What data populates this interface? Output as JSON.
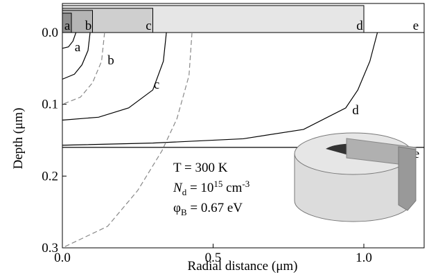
{
  "chart_data": {
    "type": "line",
    "xlabel": "Radial distance (μm)",
    "ylabel": "Depth (μm)",
    "xlim": [
      0,
      1.2
    ],
    "ylim": [
      0,
      0.3
    ],
    "y_inverted": true,
    "xticks": [
      {
        "value": 0,
        "label": "0.0"
      },
      {
        "value": 0.5,
        "label": "0.5"
      },
      {
        "value": 1,
        "label": "1.0"
      }
    ],
    "yticks": [
      {
        "value": 0,
        "label": "0.0"
      },
      {
        "value": 0.1,
        "label": "0.1"
      },
      {
        "value": 0.2,
        "label": "0.2"
      },
      {
        "value": 0.3,
        "label": "0.3"
      }
    ],
    "electrodes": [
      {
        "label": "a",
        "radius": 0.03
      },
      {
        "label": "b",
        "radius": 0.1
      },
      {
        "label": "c",
        "radius": 0.3
      },
      {
        "label": "d",
        "radius": 1.0
      },
      {
        "label": "e"
      }
    ],
    "series": [
      {
        "name": "a",
        "color": "#000000",
        "dash": false,
        "x": [
          0.045,
          0.035,
          0.02,
          0.0
        ],
        "values": [
          0,
          0.012,
          0.02,
          0.022
        ]
      },
      {
        "name": "b",
        "color": "#000000",
        "dash": false,
        "x": [
          0.092,
          0.085,
          0.065,
          0.04,
          0.0
        ],
        "values": [
          0,
          0.025,
          0.045,
          0.058,
          0.065
        ]
      },
      {
        "color": "#888888",
        "dash": true,
        "x": [
          0.14,
          0.13,
          0.1,
          0.06,
          0.0
        ],
        "values": [
          0,
          0.04,
          0.07,
          0.09,
          0.1
        ]
      },
      {
        "name": "c",
        "color": "#000000",
        "dash": false,
        "x": [
          0.345,
          0.335,
          0.3,
          0.22,
          0.12,
          0.0
        ],
        "values": [
          0,
          0.04,
          0.08,
          0.105,
          0.118,
          0.122
        ]
      },
      {
        "name": "d",
        "color": "#000000",
        "dash": false,
        "x": [
          1.045,
          1.02,
          0.98,
          0.94,
          0.8,
          0.6,
          0.3,
          0.0
        ],
        "values": [
          0,
          0.04,
          0.08,
          0.105,
          0.135,
          0.148,
          0.154,
          0.157
        ]
      },
      {
        "name": "e",
        "color": "#000000",
        "dash": false,
        "x": [
          0,
          1.2
        ],
        "values": [
          0.16,
          0.16
        ]
      },
      {
        "color": "#888888",
        "dash": true,
        "x": [
          0.43,
          0.42,
          0.38,
          0.33,
          0.25,
          0.15,
          0.0
        ],
        "values": [
          0,
          0.06,
          0.12,
          0.165,
          0.22,
          0.27,
          0.3
        ]
      }
    ],
    "annotations": [
      [
        {
          "text": "T = 300 K"
        }
      ],
      [
        {
          "text": "N",
          "style": "italic"
        },
        {
          "text": "d",
          "style": "sub"
        },
        {
          "text": " = 10"
        },
        {
          "text": "15",
          "style": "sup"
        },
        {
          "text": " cm"
        },
        {
          "text": "-3",
          "style": "sup"
        }
      ],
      [
        {
          "text": "φ"
        },
        {
          "text": "B",
          "style": "sub"
        },
        {
          "text": " = 0.67 eV"
        }
      ]
    ]
  }
}
